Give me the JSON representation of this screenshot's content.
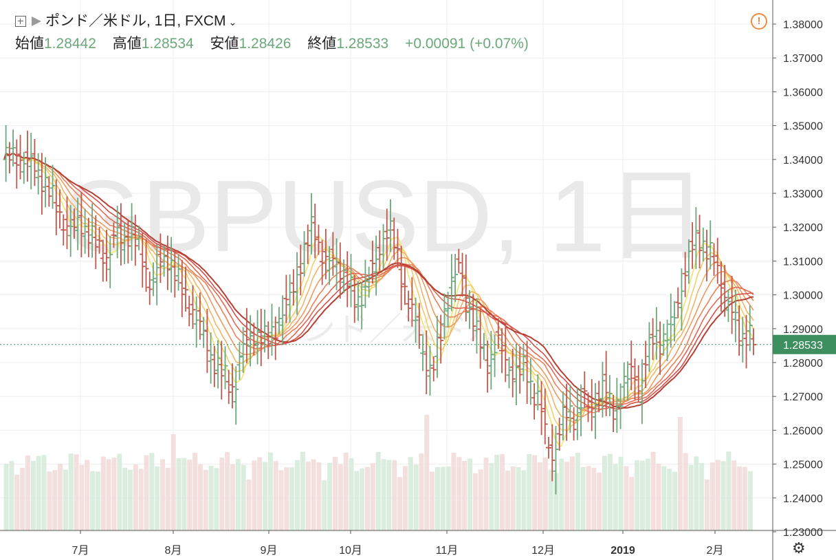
{
  "header": {
    "symbol_title": "ポンド／米ドル, 1日, FXCM",
    "chevron": "⌄"
  },
  "ohlc": [
    {
      "label": "始値",
      "value": "1.28442"
    },
    {
      "label": "高値",
      "value": "1.28534"
    },
    {
      "label": "安値",
      "value": "1.28426"
    },
    {
      "label": "終値",
      "value": "1.28533"
    }
  ],
  "change": "+0.00091 (+0.07%)",
  "watermark": {
    "main": "GBPUSD, 1日",
    "sub": "ポンド／米ドル"
  },
  "icons": {
    "alert": "!",
    "settings": "⚙"
  },
  "colors": {
    "up": "#6aa87a",
    "down": "#c0564b",
    "bg": "#ffffff",
    "grid": "#eeeeee",
    "price_tag": "#3d8f5f",
    "ribbon": [
      "#f5e36c",
      "#f3cd6a",
      "#f1b466",
      "#ee9a5e",
      "#ea8158",
      "#e26852",
      "#d6504a",
      "#b63f34"
    ]
  },
  "chart_data": {
    "type": "ohlc",
    "y_range": [
      1.23,
      1.385
    ],
    "y_ticks": [
      "1.38000",
      "1.37000",
      "1.36000",
      "1.35000",
      "1.34000",
      "1.33000",
      "1.32000",
      "1.31000",
      "1.30000",
      "1.29000",
      "1.28000",
      "1.27000",
      "1.26000",
      "1.25000",
      "1.24000",
      "1.23000"
    ],
    "x_labels": [
      "7月",
      "8月",
      "9月",
      "10月",
      "11月",
      "12月",
      "2019",
      "2月"
    ],
    "last_price": "1.28533",
    "price_path": [
      [
        0,
        1.34
      ],
      [
        8,
        1.341
      ],
      [
        16,
        1.338
      ],
      [
        22,
        1.334
      ],
      [
        28,
        1.327
      ],
      [
        33,
        1.322
      ],
      [
        38,
        1.318
      ],
      [
        42,
        1.322
      ],
      [
        46,
        1.319
      ],
      [
        52,
        1.314
      ],
      [
        58,
        1.311
      ],
      [
        62,
        1.318
      ],
      [
        66,
        1.316
      ],
      [
        70,
        1.319
      ],
      [
        76,
        1.312
      ],
      [
        82,
        1.303
      ],
      [
        88,
        1.31
      ],
      [
        92,
        1.311
      ],
      [
        98,
        1.302
      ],
      [
        104,
        1.297
      ],
      [
        110,
        1.289
      ],
      [
        116,
        1.281
      ],
      [
        122,
        1.276
      ],
      [
        128,
        1.272
      ],
      [
        132,
        1.283
      ],
      [
        136,
        1.287
      ],
      [
        140,
        1.289
      ],
      [
        146,
        1.286
      ],
      [
        150,
        1.29
      ],
      [
        156,
        1.295
      ],
      [
        160,
        1.301
      ],
      [
        164,
        1.308
      ],
      [
        168,
        1.313
      ],
      [
        172,
        1.322
      ],
      [
        176,
        1.313
      ],
      [
        180,
        1.308
      ],
      [
        184,
        1.311
      ],
      [
        190,
        1.305
      ],
      [
        196,
        1.297
      ],
      [
        200,
        1.302
      ],
      [
        206,
        1.308
      ],
      [
        210,
        1.316
      ],
      [
        214,
        1.32
      ],
      [
        218,
        1.313
      ],
      [
        222,
        1.304
      ],
      [
        226,
        1.296
      ],
      [
        230,
        1.29
      ],
      [
        234,
        1.282
      ],
      [
        238,
        1.276
      ],
      [
        242,
        1.286
      ],
      [
        246,
        1.298
      ],
      [
        250,
        1.305
      ],
      [
        254,
        1.308
      ],
      [
        258,
        1.299
      ],
      [
        262,
        1.29
      ],
      [
        266,
        1.284
      ],
      [
        270,
        1.28
      ],
      [
        274,
        1.286
      ],
      [
        278,
        1.282
      ],
      [
        282,
        1.278
      ],
      [
        286,
        1.276
      ],
      [
        290,
        1.279
      ],
      [
        294,
        1.272
      ],
      [
        298,
        1.268
      ],
      [
        302,
        1.257
      ],
      [
        306,
        1.252
      ],
      [
        310,
        1.262
      ],
      [
        314,
        1.266
      ],
      [
        318,
        1.264
      ],
      [
        322,
        1.269
      ],
      [
        326,
        1.266
      ],
      [
        330,
        1.27
      ],
      [
        334,
        1.273
      ],
      [
        338,
        1.266
      ],
      [
        342,
        1.269
      ],
      [
        346,
        1.274
      ],
      [
        350,
        1.278
      ],
      [
        354,
        1.272
      ],
      [
        358,
        1.282
      ],
      [
        362,
        1.289
      ],
      [
        366,
        1.286
      ],
      [
        370,
        1.288
      ],
      [
        374,
        1.296
      ],
      [
        378,
        1.305
      ],
      [
        382,
        1.312
      ],
      [
        386,
        1.318
      ],
      [
        390,
        1.314
      ],
      [
        394,
        1.311
      ],
      [
        398,
        1.306
      ],
      [
        402,
        1.299
      ],
      [
        406,
        1.293
      ],
      [
        410,
        1.287
      ],
      [
        414,
        1.29
      ],
      [
        417,
        1.2853
      ]
    ],
    "ribbon_offsets": [
      0.0,
      0.0013,
      0.0026,
      0.004,
      0.0055,
      0.007,
      0.0085,
      0.01
    ],
    "ribbon_smoothing": [
      8,
      12,
      16,
      21,
      27,
      33,
      40,
      48
    ]
  }
}
